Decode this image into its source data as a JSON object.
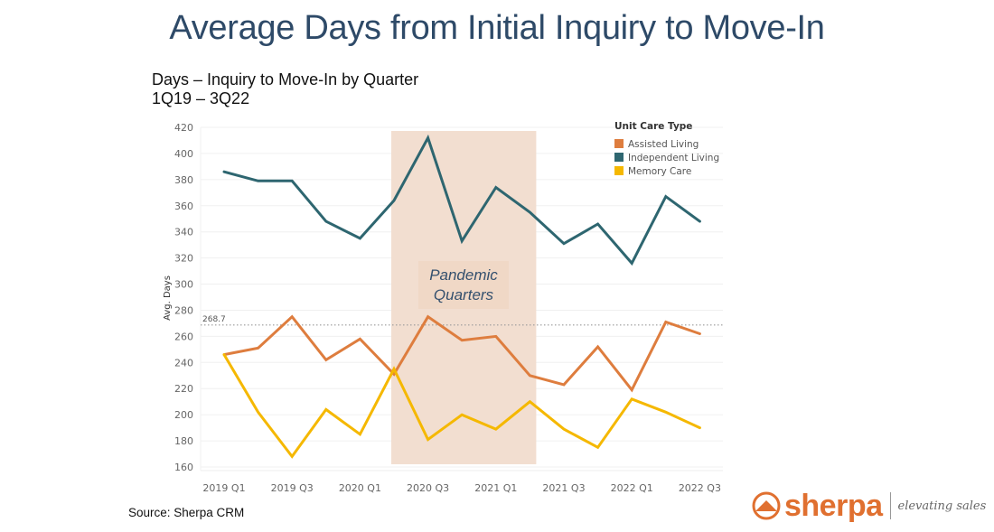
{
  "title": "Average Days from Initial Inquiry to Move-In",
  "subtitle_line1": "Days – Inquiry to Move-In by Quarter",
  "subtitle_line2": "1Q19 – 3Q22",
  "source": "Source: Sherpa CRM",
  "logo": {
    "icon": "mountain-circle-icon",
    "word": "sherpa",
    "tagline": "elevating sales"
  },
  "chart_data": {
    "type": "line",
    "title": "Days – Inquiry to Move-In by Quarter",
    "xlabel": "",
    "ylabel": "Avg. Days",
    "ylim": [
      160,
      420
    ],
    "yticks": [
      160,
      180,
      200,
      220,
      240,
      260,
      280,
      300,
      320,
      340,
      360,
      380,
      400,
      420
    ],
    "grid": true,
    "x": [
      "2019 Q1",
      "2019 Q2",
      "2019 Q3",
      "2019 Q4",
      "2020 Q1",
      "2020 Q2",
      "2020 Q3",
      "2020 Q4",
      "2021 Q1",
      "2021 Q2",
      "2021 Q3",
      "2021 Q4",
      "2022 Q1",
      "2022 Q2",
      "2022 Q3"
    ],
    "xtick_labels": [
      "2019 Q1",
      "2019 Q3",
      "2020 Q1",
      "2020 Q3",
      "2021 Q1",
      "2021 Q3",
      "2022 Q1",
      "2022 Q3"
    ],
    "legend": {
      "title": "Unit Care Type",
      "placement": "top-right"
    },
    "series": [
      {
        "name": "Assisted Living",
        "color": "#de7d3e",
        "values": [
          246,
          251,
          275,
          242,
          258,
          231,
          275,
          257,
          260,
          230,
          223,
          252,
          219,
          271,
          262
        ]
      },
      {
        "name": "Independent Living",
        "color": "#2e6670",
        "values": [
          386,
          379,
          379,
          348,
          335,
          364,
          412,
          333,
          374,
          355,
          331,
          346,
          316,
          367,
          348
        ]
      },
      {
        "name": "Memory Care",
        "color": "#f5b800",
        "values": [
          246,
          202,
          168,
          204,
          185,
          235,
          181,
          200,
          189,
          210,
          189,
          175,
          212,
          202,
          190
        ]
      }
    ],
    "reference_line": {
      "value": 268.7,
      "label": "268.7",
      "style": "dotted"
    },
    "highlight_band": {
      "label_line1": "Pandemic",
      "label_line2": "Quarters",
      "from": "2020 Q2",
      "to": "2021 Q2",
      "color": "#f1dccd"
    }
  }
}
